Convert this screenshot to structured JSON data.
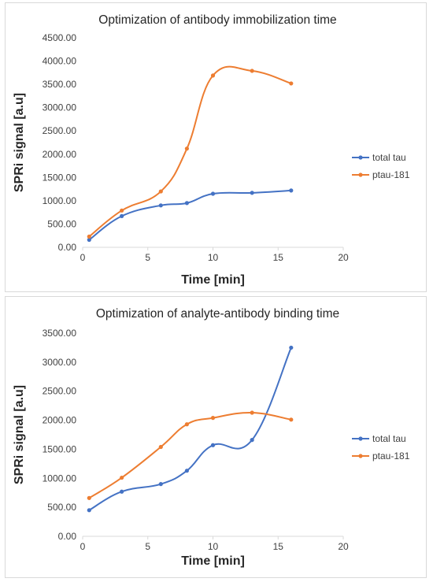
{
  "chart_data": [
    {
      "type": "line",
      "title": "Optimization of antibody immobilization time",
      "xlabel": "Time [min]",
      "ylabel": "SPRi signal [a.u]",
      "xlim": [
        0,
        20
      ],
      "ylim": [
        0,
        4500
      ],
      "x_ticks": [
        "0",
        "5",
        "10",
        "15",
        "20"
      ],
      "y_ticks": [
        "0.00",
        "500.00",
        "1000.00",
        "1500.00",
        "2000.00",
        "2500.00",
        "3000.00",
        "3500.00",
        "4000.00",
        "4500.00"
      ],
      "grid": false,
      "smooth": true,
      "legend_position": "right",
      "series": [
        {
          "name": "total tau",
          "color": "#4472C4",
          "x": [
            0.5,
            3,
            6,
            8,
            10,
            13,
            16
          ],
          "y": [
            160,
            670,
            900,
            950,
            1150,
            1170,
            1220
          ]
        },
        {
          "name": "ptau-181",
          "color": "#ED7D31",
          "x": [
            0.5,
            3,
            6,
            8,
            10,
            13,
            16
          ],
          "y": [
            230,
            790,
            1200,
            2120,
            3690,
            3790,
            3520
          ]
        }
      ]
    },
    {
      "type": "line",
      "title": "Optimization of analyte-antibody binding time",
      "xlabel": "Time [min]",
      "ylabel": "SPRi signal [a.u]",
      "xlim": [
        0,
        20
      ],
      "ylim": [
        0,
        3500
      ],
      "x_ticks": [
        "0",
        "5",
        "10",
        "15",
        "20"
      ],
      "y_ticks": [
        "0.00",
        "500.00",
        "1000.00",
        "1500.00",
        "2000.00",
        "2500.00",
        "3000.00",
        "3500.00"
      ],
      "grid": false,
      "smooth": true,
      "legend_position": "right",
      "series": [
        {
          "name": "total tau",
          "color": "#4472C4",
          "x": [
            0.5,
            3,
            6,
            8,
            10,
            13,
            16
          ],
          "y": [
            450,
            770,
            900,
            1130,
            1570,
            1660,
            3250
          ]
        },
        {
          "name": "ptau-181",
          "color": "#ED7D31",
          "x": [
            0.5,
            3,
            6,
            8,
            10,
            13,
            16
          ],
          "y": [
            660,
            1010,
            1540,
            1930,
            2040,
            2130,
            2010
          ]
        }
      ]
    }
  ]
}
